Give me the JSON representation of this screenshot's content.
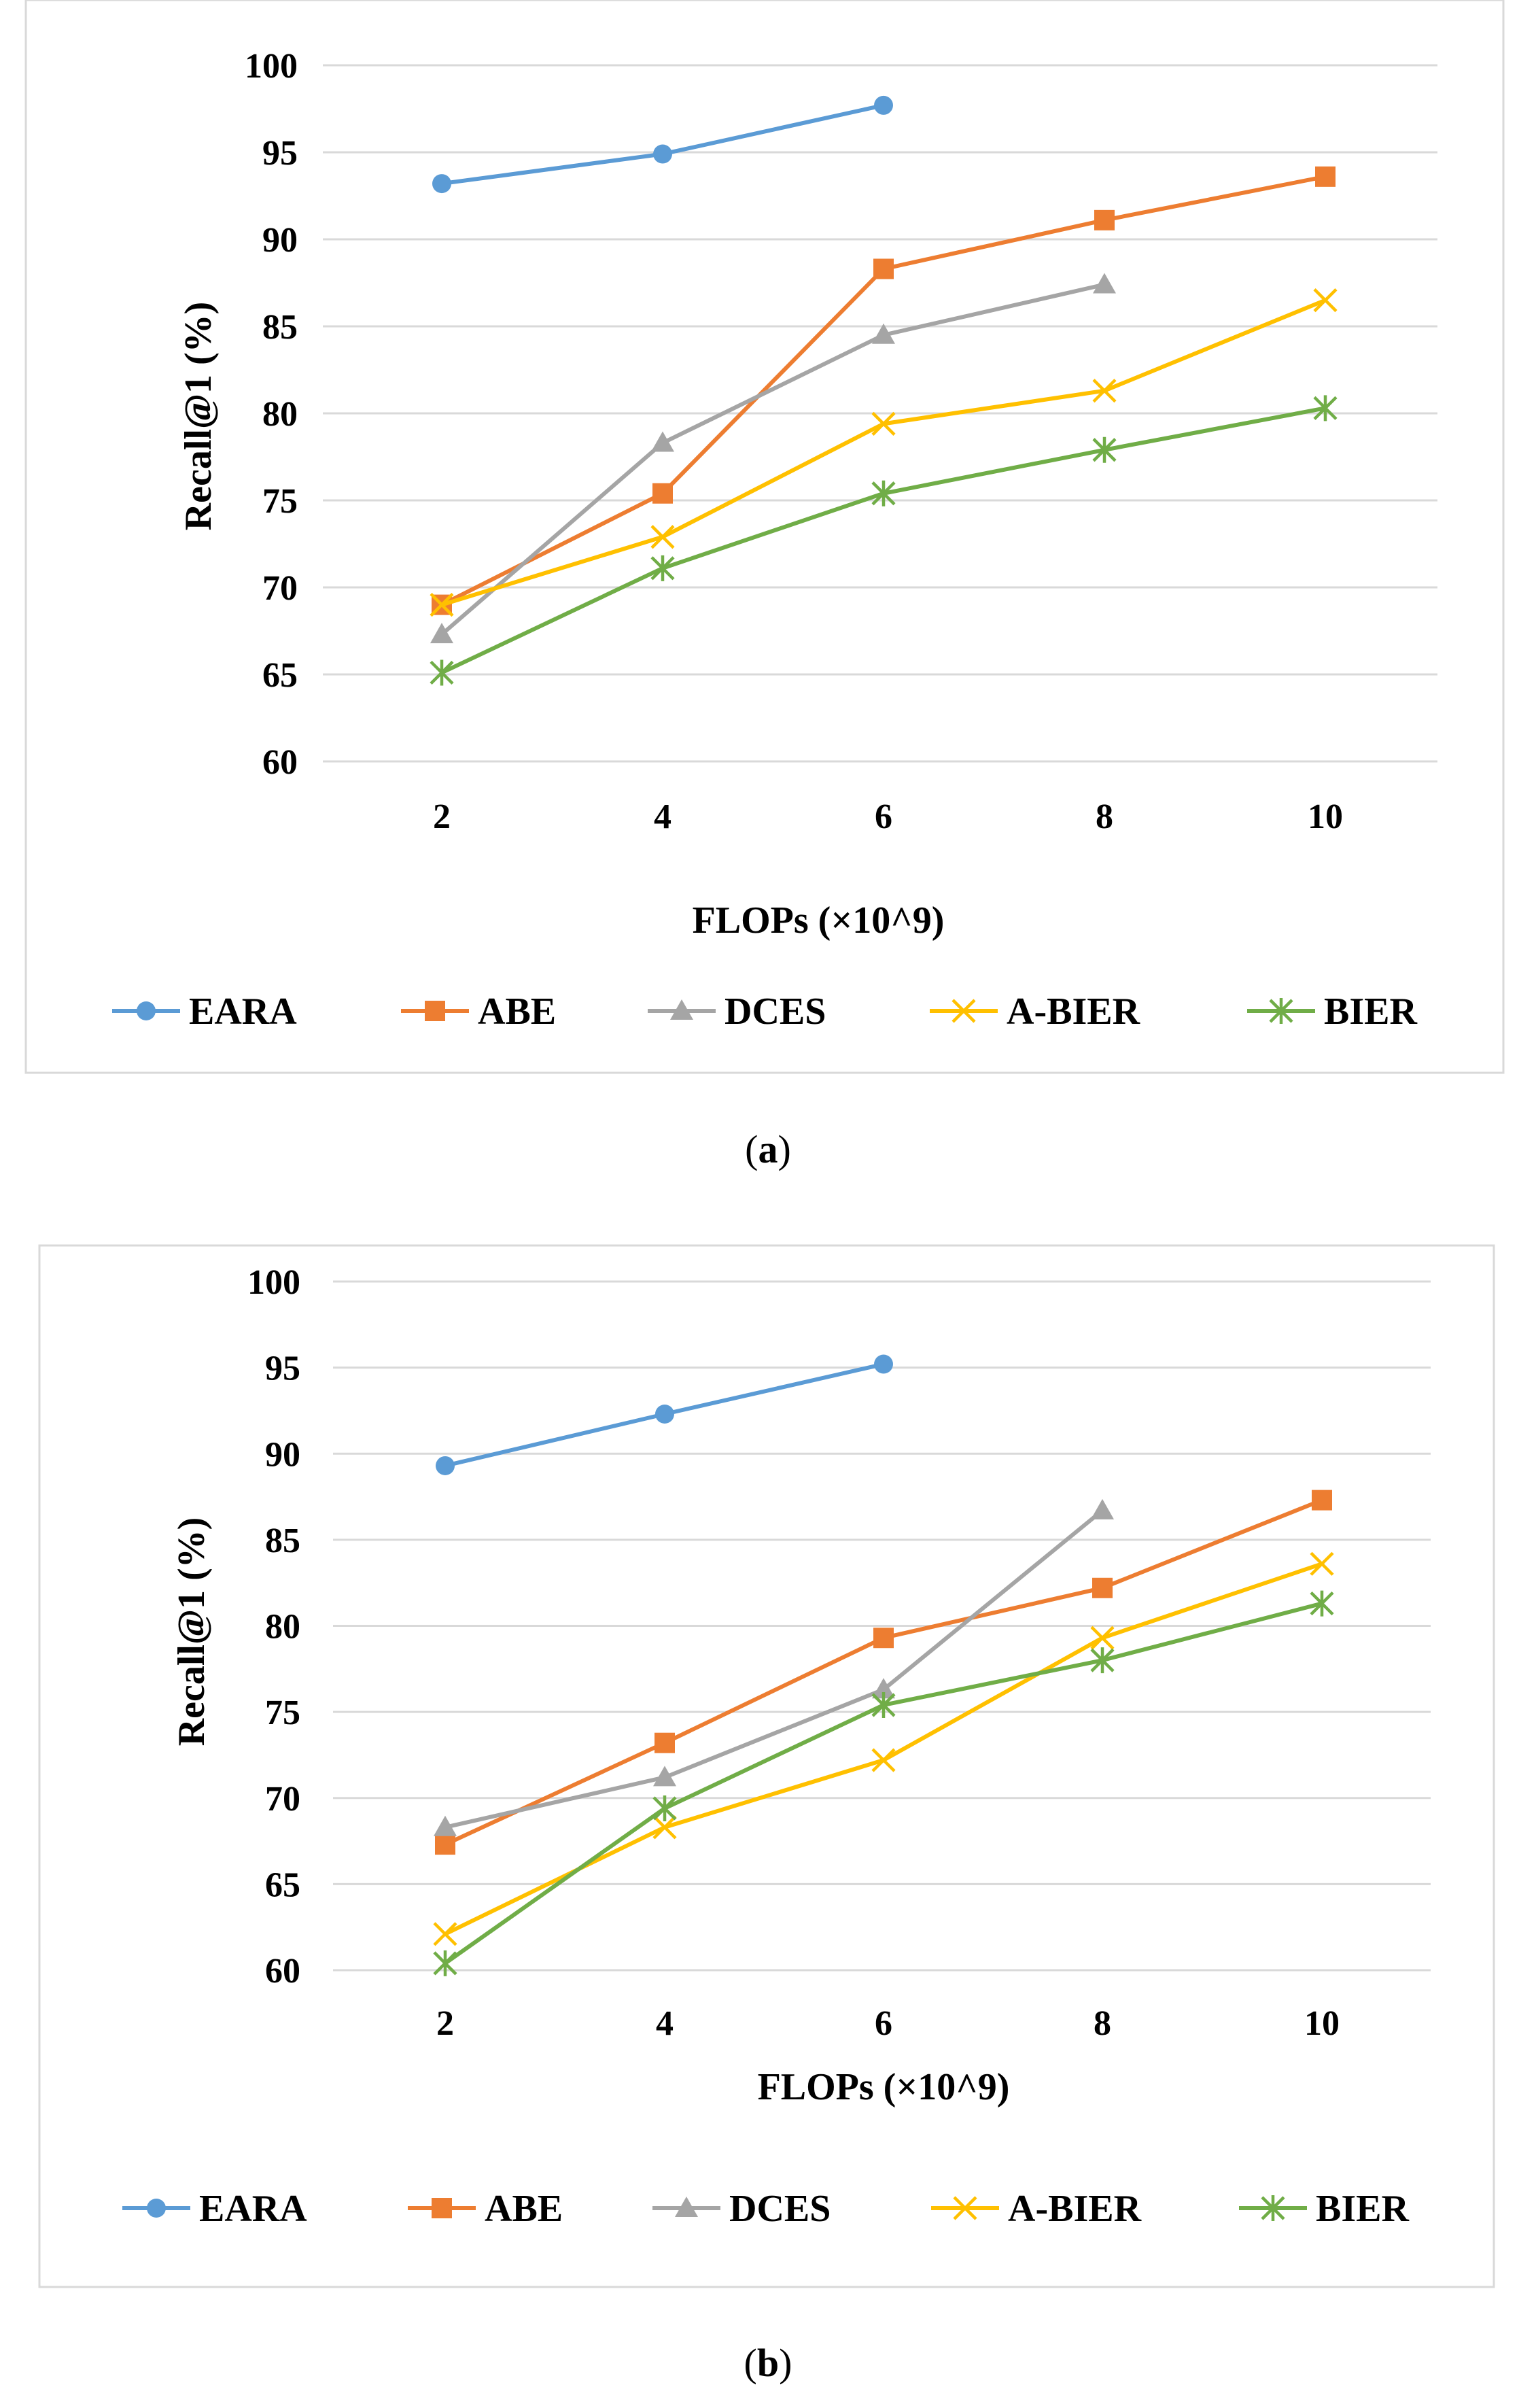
{
  "chart_data": [
    {
      "type": "line",
      "caption_letter": "a",
      "x": [
        2,
        4,
        6,
        8,
        10
      ],
      "xtick_labels": [
        "2",
        "4",
        "6",
        "8",
        "10"
      ],
      "ytick_labels": [
        "60",
        "65",
        "70",
        "75",
        "80",
        "85",
        "90",
        "95",
        "100"
      ],
      "xlabel": "FLOPs (×10^9)",
      "ylabel": "Recall@1 (%)",
      "ylim": [
        60,
        100
      ],
      "grid": true,
      "legend_position": "bottom",
      "series": [
        {
          "name": "EARA",
          "marker": "circle",
          "color": "#5b9bd5",
          "values": [
            93.2,
            94.9,
            97.7,
            null,
            null
          ]
        },
        {
          "name": "ABE",
          "marker": "square",
          "color": "#ed7d31",
          "values": [
            69.0,
            75.4,
            88.3,
            91.1,
            93.6
          ]
        },
        {
          "name": "DCES",
          "marker": "triangle",
          "color": "#a5a5a5",
          "values": [
            67.3,
            78.3,
            84.5,
            87.4,
            null
          ]
        },
        {
          "name": "A-BIER",
          "marker": "x",
          "color": "#ffc000",
          "values": [
            69.0,
            72.9,
            79.4,
            81.3,
            86.5
          ]
        },
        {
          "name": "BIER",
          "marker": "star",
          "color": "#70ad47",
          "values": [
            65.1,
            71.1,
            75.4,
            77.9,
            80.3
          ]
        }
      ]
    },
    {
      "type": "line",
      "caption_letter": "b",
      "x": [
        2,
        4,
        6,
        8,
        10
      ],
      "xtick_labels": [
        "2",
        "4",
        "6",
        "8",
        "10"
      ],
      "ytick_labels": [
        "60",
        "65",
        "70",
        "75",
        "80",
        "85",
        "90",
        "95",
        "100"
      ],
      "xlabel": "FLOPs (×10^9)",
      "ylabel": "Recall@1 (%)",
      "ylim": [
        60,
        100
      ],
      "grid": true,
      "legend_position": "bottom",
      "series": [
        {
          "name": "EARA",
          "marker": "circle",
          "color": "#5b9bd5",
          "values": [
            89.3,
            92.3,
            95.2,
            null,
            null
          ]
        },
        {
          "name": "ABE",
          "marker": "square",
          "color": "#ed7d31",
          "values": [
            67.3,
            73.2,
            79.3,
            82.2,
            87.3
          ]
        },
        {
          "name": "DCES",
          "marker": "triangle",
          "color": "#a5a5a5",
          "values": [
            68.3,
            71.2,
            76.3,
            86.7,
            null
          ]
        },
        {
          "name": "A-BIER",
          "marker": "x",
          "color": "#ffc000",
          "values": [
            62.1,
            68.3,
            72.2,
            79.3,
            83.6
          ]
        },
        {
          "name": "BIER",
          "marker": "star",
          "color": "#70ad47",
          "values": [
            60.4,
            69.4,
            75.4,
            78.0,
            81.3
          ]
        }
      ]
    }
  ]
}
